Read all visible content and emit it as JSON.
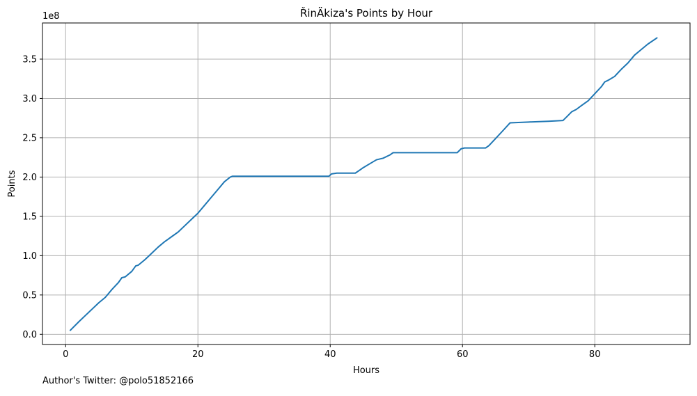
{
  "chart_data": {
    "type": "line",
    "title": "ŘinÄkiza's Points by Hour",
    "xlabel": "Hours",
    "ylabel": "Points",
    "xlim": [
      -3.5,
      94.4
    ],
    "ylim": [
      -0.13,
      3.96
    ],
    "y_multiplier_label": "1e8",
    "x_ticks": [
      0,
      20,
      40,
      60,
      80
    ],
    "x_tick_labels": [
      "0",
      "20",
      "40",
      "60",
      "80"
    ],
    "y_ticks": [
      0.0,
      0.5,
      1.0,
      1.5,
      2.0,
      2.5,
      3.0,
      3.5
    ],
    "y_tick_labels": [
      "0.0",
      "0.5",
      "1.0",
      "1.5",
      "2.0",
      "2.5",
      "3.0",
      "3.5"
    ],
    "grid": true,
    "series": [
      {
        "color": "#1f77b4",
        "x": [
          0.7,
          2,
          3,
          4,
          5,
          6,
          7,
          8,
          8.5,
          9,
          10,
          10.6,
          11,
          12,
          13,
          14,
          15,
          15.5,
          16,
          17,
          18,
          19,
          20,
          21,
          22,
          23,
          24,
          24.9,
          25.2,
          30,
          35,
          39.8,
          40.2,
          41,
          43.8,
          44.5,
          45,
          46,
          47,
          47.5,
          48,
          49,
          49.5,
          50,
          55,
          59.2,
          59.8,
          60.3,
          63.5,
          64,
          65,
          66,
          67.2,
          70,
          73,
          75.2,
          75.8,
          76.5,
          77.2,
          78,
          79,
          80,
          81,
          81.5,
          82,
          83,
          84,
          85,
          86,
          87,
          88,
          89.4
        ],
        "y": [
          0.05,
          0.16,
          0.24,
          0.32,
          0.4,
          0.47,
          0.57,
          0.66,
          0.72,
          0.73,
          0.8,
          0.87,
          0.88,
          0.95,
          1.03,
          1.11,
          1.18,
          1.21,
          1.24,
          1.3,
          1.38,
          1.46,
          1.54,
          1.64,
          1.74,
          1.84,
          1.94,
          2.0,
          2.01,
          2.01,
          2.01,
          2.01,
          2.04,
          2.05,
          2.05,
          2.09,
          2.12,
          2.17,
          2.22,
          2.23,
          2.24,
          2.28,
          2.31,
          2.31,
          2.31,
          2.31,
          2.36,
          2.37,
          2.37,
          2.4,
          2.49,
          2.58,
          2.69,
          2.7,
          2.71,
          2.72,
          2.77,
          2.83,
          2.86,
          2.91,
          2.97,
          3.06,
          3.15,
          3.21,
          3.23,
          3.28,
          3.37,
          3.45,
          3.55,
          3.62,
          3.69,
          3.77
        ]
      }
    ]
  },
  "footer": {
    "credit": "Author's Twitter: @polo51852166"
  }
}
